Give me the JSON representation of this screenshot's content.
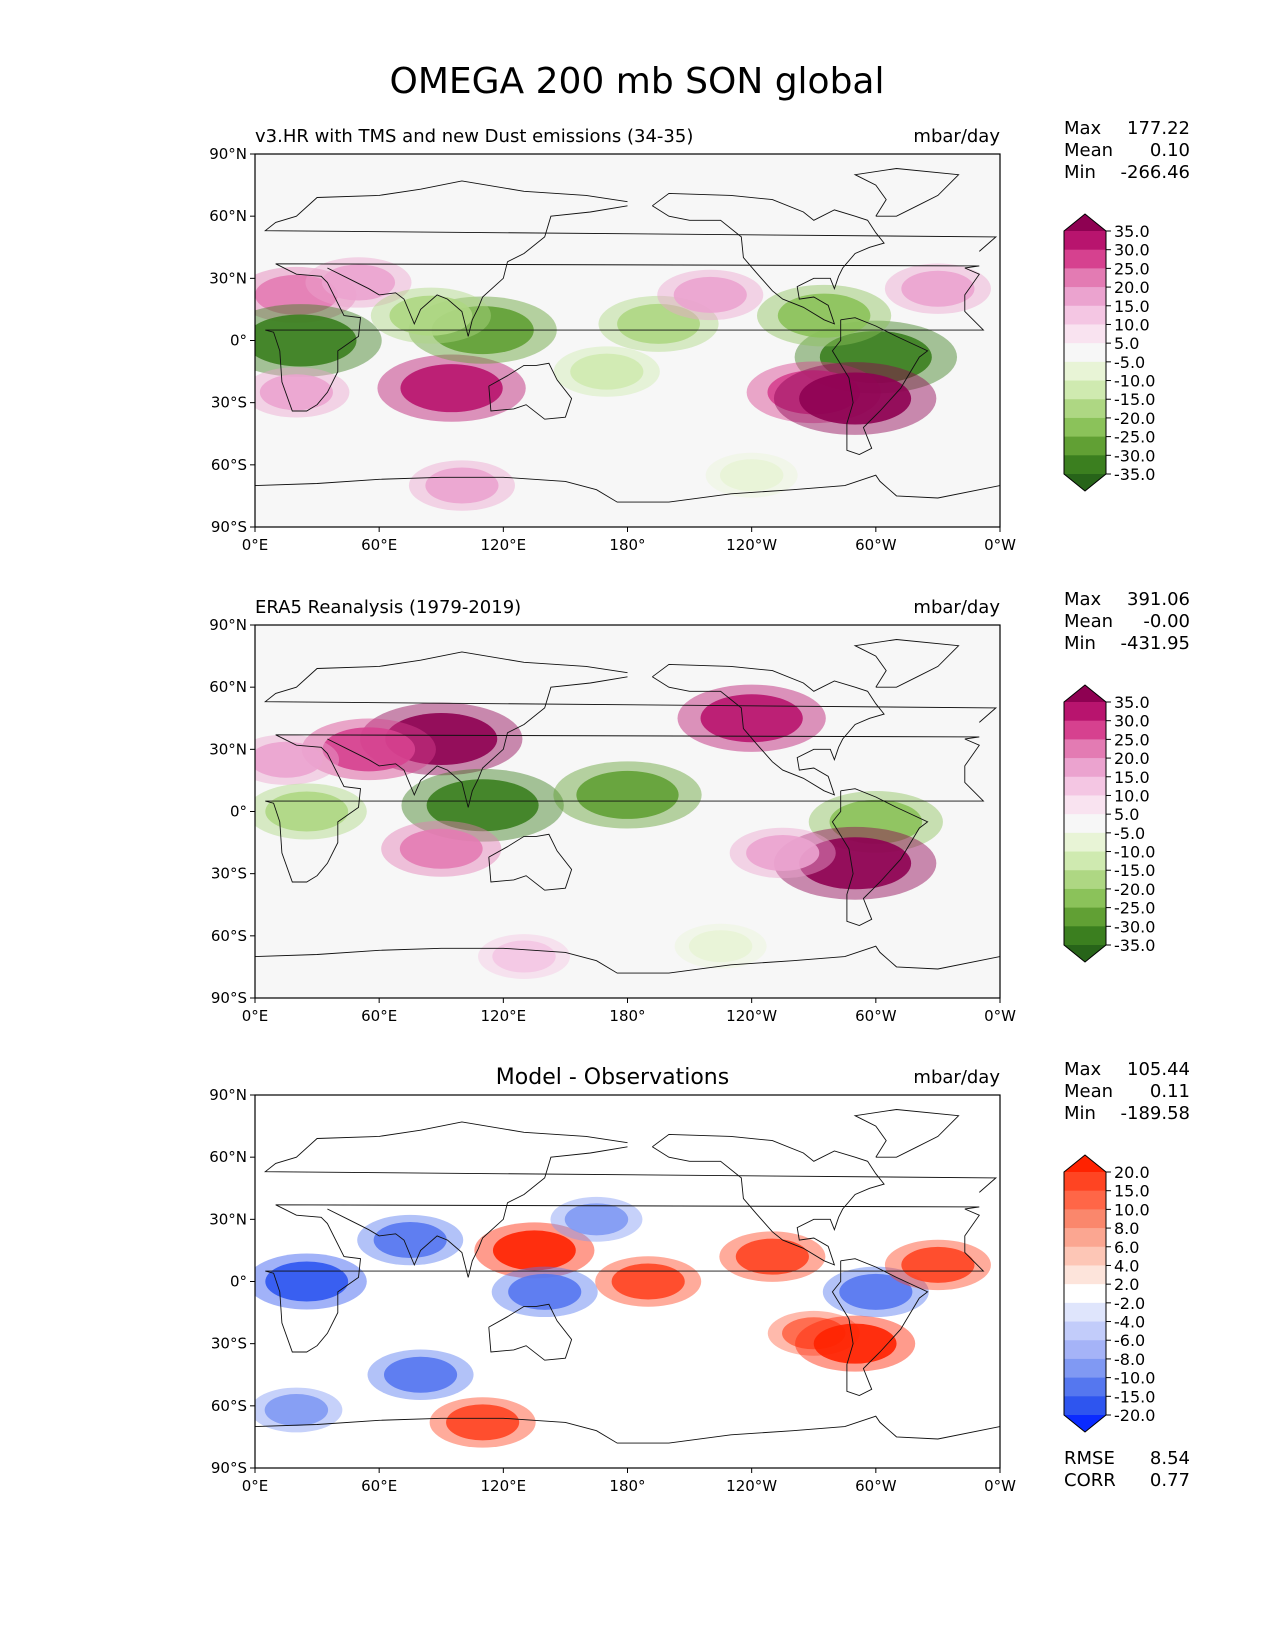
{
  "figure": {
    "title": "OMEGA 200 mb SON global",
    "lat_ticks": [
      "90°N",
      "60°N",
      "30°N",
      "0°",
      "30°S",
      "60°S",
      "90°S"
    ],
    "lon_ticks": [
      "0°E",
      "60°E",
      "120°E",
      "180°",
      "120°W",
      "60°W",
      "0°W"
    ]
  },
  "chart_data": [
    {
      "type": "heatmap",
      "panel": "test",
      "title": "v3.HR with TMS and new Dust emissions (34-35)",
      "units": "mbar/day",
      "stats": {
        "max_label": "Max",
        "max": "177.22",
        "mean_label": "Mean",
        "mean": "0.10",
        "min_label": "Min",
        "min": "-266.46"
      },
      "colorbar": {
        "levels": [
          "35.0",
          "30.0",
          "25.0",
          "20.0",
          "15.0",
          "10.0",
          "5.0",
          "-5.0",
          "-10.0",
          "-15.0",
          "-20.0",
          "-25.0",
          "-30.0",
          "-35.0"
        ],
        "colors": [
          "#8e0152",
          "#b8146e",
          "#d6418f",
          "#e37bb3",
          "#eba3cf",
          "#f4c6e3",
          "#f9e3f0",
          "#f7f7f7",
          "#e8f4d6",
          "#cfeab0",
          "#aed783",
          "#8bc25a",
          "#61a034",
          "#3b7f1f",
          "#276419"
        ]
      },
      "features": [
        {
          "name": "sahara-subsidence",
          "lon": 20,
          "lat": 22,
          "value": 20
        },
        {
          "name": "middle-east-subsidence",
          "lon": 50,
          "lat": 28,
          "value": 15
        },
        {
          "name": "central-africa-ascent",
          "lon": 22,
          "lat": 0,
          "value": -35
        },
        {
          "name": "southern-indian-ocean-subsidence",
          "lon": 95,
          "lat": -23,
          "value": 30
        },
        {
          "name": "south-africa-subsidence",
          "lon": 20,
          "lat": -25,
          "value": 15
        },
        {
          "name": "maritime-continent-ascent",
          "lon": 110,
          "lat": 5,
          "value": -30
        },
        {
          "name": "bay-of-bengal-ascent",
          "lon": 85,
          "lat": 12,
          "value": -20
        },
        {
          "name": "pacific-itcz-ascent",
          "lon": 195,
          "lat": 8,
          "value": -20
        },
        {
          "name": "south-pacific-convergence-zone",
          "lon": 170,
          "lat": -15,
          "value": -15
        },
        {
          "name": "amazon-ascent",
          "lon": 300,
          "lat": -8,
          "value": -35
        },
        {
          "name": "central-america-ascent",
          "lon": 275,
          "lat": 12,
          "value": -25
        },
        {
          "name": "southeast-pacific-subsidence",
          "lon": 270,
          "lat": -25,
          "value": 25
        },
        {
          "name": "andes-subsidence",
          "lon": 290,
          "lat": -28,
          "value": 35
        },
        {
          "name": "north-pacific-subsidence",
          "lon": 220,
          "lat": 22,
          "value": 15
        },
        {
          "name": "north-atlantic-subsidence",
          "lon": 330,
          "lat": 25,
          "value": 15
        },
        {
          "name": "southern-ocean-ascent",
          "lon": 240,
          "lat": -65,
          "value": -10
        },
        {
          "name": "antarctic-coast-subsidence",
          "lon": 100,
          "lat": -70,
          "value": 15
        }
      ]
    },
    {
      "type": "heatmap",
      "panel": "reference",
      "title": "ERA5 Reanalysis (1979-2019)",
      "units": "mbar/day",
      "stats": {
        "max_label": "Max",
        "max": "391.06",
        "mean_label": "Mean",
        "mean": "-0.00",
        "min_label": "Min",
        "min": "-431.95"
      },
      "colorbar": {
        "levels": [
          "35.0",
          "30.0",
          "25.0",
          "20.0",
          "15.0",
          "10.0",
          "5.0",
          "-5.0",
          "-10.0",
          "-15.0",
          "-20.0",
          "-25.0",
          "-30.0",
          "-35.0"
        ],
        "colors": [
          "#8e0152",
          "#b8146e",
          "#d6418f",
          "#e37bb3",
          "#eba3cf",
          "#f4c6e3",
          "#f9e3f0",
          "#f7f7f7",
          "#e8f4d6",
          "#cfeab0",
          "#aed783",
          "#8bc25a",
          "#61a034",
          "#3b7f1f",
          "#276419"
        ]
      },
      "features": [
        {
          "name": "tibet-subsidence",
          "lon": 90,
          "lat": 35,
          "value": 35
        },
        {
          "name": "middle-east-subsidence",
          "lon": 55,
          "lat": 30,
          "value": 25
        },
        {
          "name": "north-africa-subsidence",
          "lon": 15,
          "lat": 25,
          "value": 15
        },
        {
          "name": "rockies-subsidence",
          "lon": 240,
          "lat": 45,
          "value": 30
        },
        {
          "name": "central-africa-ascent",
          "lon": 25,
          "lat": 0,
          "value": -20
        },
        {
          "name": "maritime-continent-ascent",
          "lon": 110,
          "lat": 3,
          "value": -35
        },
        {
          "name": "pacific-itcz-ascent",
          "lon": 180,
          "lat": 8,
          "value": -30
        },
        {
          "name": "indian-ocean-subsidence",
          "lon": 90,
          "lat": -18,
          "value": 20
        },
        {
          "name": "amazon-ascent",
          "lon": 300,
          "lat": -5,
          "value": -25
        },
        {
          "name": "andes-subsidence",
          "lon": 290,
          "lat": -25,
          "value": 35
        },
        {
          "name": "southeast-pacific-subsidence",
          "lon": 255,
          "lat": -20,
          "value": 15
        },
        {
          "name": "southern-ocean-ascent",
          "lon": 225,
          "lat": -65,
          "value": -10
        },
        {
          "name": "antarctic-coast-subsidence",
          "lon": 130,
          "lat": -70,
          "value": 10
        }
      ]
    },
    {
      "type": "heatmap",
      "panel": "difference",
      "title": "Model - Observations",
      "units": "mbar/day",
      "stats": {
        "max_label": "Max",
        "max": "105.44",
        "mean_label": "Mean",
        "mean": "0.11",
        "min_label": "Min",
        "min": "-189.58"
      },
      "metrics": {
        "rmse_label": "RMSE",
        "rmse": "8.54",
        "corr_label": "CORR",
        "corr": "0.77"
      },
      "colorbar": {
        "levels": [
          "20.0",
          "15.0",
          "10.0",
          "8.0",
          "6.0",
          "4.0",
          "2.0",
          "-2.0",
          "-4.0",
          "-6.0",
          "-8.0",
          "-10.0",
          "-15.0",
          "-20.0"
        ],
        "colors": [
          "#ff2200",
          "#ff4422",
          "#ff6647",
          "#fa876c",
          "#fba691",
          "#fdc6b6",
          "#fde4db",
          "#ffffff",
          "#dfe5fc",
          "#c2ccfa",
          "#a5b3f7",
          "#8099f3",
          "#5577ef",
          "#2e55ef",
          "#0a2bff"
        ]
      },
      "features": [
        {
          "name": "central-africa-bias",
          "lon": 25,
          "lat": 0,
          "value": -20
        },
        {
          "name": "india-bias",
          "lon": 75,
          "lat": 20,
          "value": -15
        },
        {
          "name": "western-pacific-bias",
          "lon": 135,
          "lat": 15,
          "value": 20
        },
        {
          "name": "central-pacific-bias",
          "lon": 190,
          "lat": 0,
          "value": 15
        },
        {
          "name": "north-pacific-bias",
          "lon": 165,
          "lat": 30,
          "value": -10
        },
        {
          "name": "australia-bias",
          "lon": 140,
          "lat": -5,
          "value": -15
        },
        {
          "name": "indian-ocean-south-bias",
          "lon": 80,
          "lat": -45,
          "value": -15
        },
        {
          "name": "antarctic-coast-bias",
          "lon": 110,
          "lat": -68,
          "value": 15
        },
        {
          "name": "southern-atlantic-bias",
          "lon": 20,
          "lat": -62,
          "value": -10
        },
        {
          "name": "amazon-bias",
          "lon": 300,
          "lat": -5,
          "value": -15
        },
        {
          "name": "southeast-pacific-bias",
          "lon": 270,
          "lat": -25,
          "value": 10
        },
        {
          "name": "east-pacific-itcz-bias",
          "lon": 250,
          "lat": 12,
          "value": 15
        },
        {
          "name": "andes-bias",
          "lon": 290,
          "lat": -30,
          "value": 20
        },
        {
          "name": "atlantic-itcz-bias",
          "lon": 330,
          "lat": 8,
          "value": 15
        }
      ]
    }
  ]
}
